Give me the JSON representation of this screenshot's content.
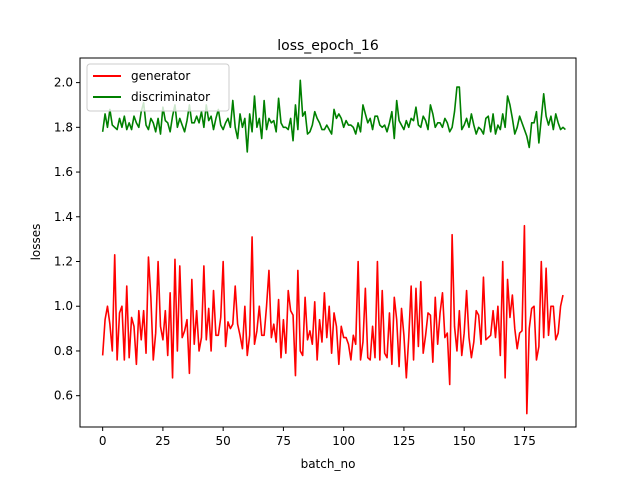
{
  "chart_data": {
    "type": "line",
    "title": "loss_epoch_16",
    "xlabel": "batch_no",
    "ylabel": "losses",
    "xlim": [
      -9.4,
      196.4
    ],
    "ylim": [
      0.46,
      2.11
    ],
    "xticks": [
      0,
      25,
      50,
      75,
      100,
      125,
      150,
      175
    ],
    "yticks": [
      0.6,
      0.8,
      1.0,
      1.2,
      1.4,
      1.6,
      1.8,
      2.0
    ],
    "xtick_labels": [
      "0",
      "25",
      "50",
      "75",
      "100",
      "125",
      "150",
      "175"
    ],
    "ytick_labels": [
      "0.6",
      "0.8",
      "1.0",
      "1.2",
      "1.4",
      "1.6",
      "1.8",
      "2.0"
    ],
    "legend_position": "top-left",
    "grid": false,
    "series": [
      {
        "name": "generator",
        "color": "#ff0000",
        "values": [
          0.78,
          0.94,
          1.0,
          0.92,
          0.8,
          1.23,
          0.76,
          0.97,
          1.0,
          0.76,
          1.09,
          0.77,
          0.95,
          0.91,
          0.74,
          0.98,
          0.85,
          0.98,
          0.79,
          1.22,
          1.04,
          0.76,
          0.88,
          1.2,
          0.91,
          0.85,
          0.98,
          0.78,
          1.06,
          0.68,
          1.21,
          0.8,
          1.18,
          0.86,
          0.89,
          0.94,
          0.7,
          1.12,
          0.83,
          0.98,
          0.8,
          0.86,
          1.18,
          0.85,
          0.99,
          0.8,
          1.07,
          0.87,
          0.87,
          0.95,
          1.2,
          0.82,
          0.93,
          0.9,
          0.92,
          1.09,
          0.92,
          0.87,
          0.81,
          1.0,
          0.78,
          0.87,
          1.31,
          0.83,
          0.89,
          1.0,
          0.87,
          0.87,
          1.0,
          1.16,
          0.86,
          0.92,
          0.84,
          1.03,
          0.77,
          0.94,
          0.79,
          1.07,
          0.98,
          0.96,
          0.69,
          1.16,
          0.8,
          0.78,
          1.04,
          0.85,
          0.89,
          0.83,
          1.02,
          0.76,
          0.94,
          0.84,
          1.06,
          0.86,
          1.0,
          0.79,
          0.97,
          0.91,
          0.74,
          0.91,
          0.86,
          0.86,
          0.83,
          0.76,
          0.87,
          0.83,
          1.2,
          0.76,
          0.84,
          1.08,
          0.77,
          0.76,
          0.91,
          0.77,
          1.2,
          0.76,
          1.07,
          0.79,
          0.77,
          0.97,
          0.74,
          1.04,
          0.94,
          0.73,
          0.99,
          0.87,
          0.68,
          0.86,
          1.09,
          0.76,
          1.08,
          0.82,
          1.11,
          0.79,
          0.87,
          0.97,
          0.96,
          0.75,
          1.04,
          0.83,
          0.97,
          1.06,
          0.86,
          0.88,
          0.65,
          1.32,
          0.91,
          0.8,
          0.98,
          0.78,
          0.88,
          1.07,
          0.86,
          0.77,
          0.84,
          0.98,
          0.96,
          0.83,
          1.13,
          0.85,
          0.86,
          0.87,
          0.98,
          0.86,
          1.0,
          0.78,
          1.2,
          0.68,
          1.12,
          0.95,
          1.05,
          0.9,
          0.81,
          0.88,
          0.89,
          1.36,
          0.52,
          0.9,
          0.99,
          1.0,
          0.76,
          0.82,
          1.2,
          0.86,
          1.17,
          0.87,
          1.0,
          1.0,
          0.85,
          0.88,
          1.0,
          1.05
        ]
      },
      {
        "name": "discriminator",
        "color": "#008000",
        "values": [
          1.78,
          1.86,
          1.8,
          1.88,
          1.81,
          1.8,
          1.79,
          1.84,
          1.8,
          1.85,
          1.79,
          1.82,
          1.79,
          1.85,
          1.82,
          1.8,
          1.87,
          1.91,
          1.81,
          1.79,
          1.84,
          1.82,
          1.78,
          1.84,
          1.77,
          1.89,
          1.83,
          1.82,
          1.78,
          1.85,
          1.9,
          1.8,
          1.84,
          1.81,
          1.78,
          1.83,
          1.9,
          1.82,
          1.82,
          1.85,
          1.82,
          1.87,
          1.8,
          1.9,
          1.83,
          1.85,
          1.79,
          1.84,
          1.88,
          1.81,
          1.79,
          1.82,
          1.84,
          1.8,
          1.92,
          1.8,
          1.75,
          1.86,
          1.8,
          1.84,
          1.69,
          1.86,
          1.78,
          1.94,
          1.8,
          1.84,
          1.75,
          1.92,
          1.79,
          1.84,
          1.82,
          1.83,
          1.78,
          1.93,
          1.82,
          1.8,
          1.8,
          1.79,
          1.84,
          1.74,
          1.9,
          1.79,
          2.01,
          1.85,
          1.87,
          1.77,
          1.78,
          1.81,
          1.87,
          1.84,
          1.82,
          1.79,
          1.79,
          1.81,
          1.79,
          1.77,
          1.88,
          1.84,
          1.86,
          1.84,
          1.8,
          1.83,
          1.81,
          1.81,
          1.8,
          1.77,
          1.82,
          1.78,
          1.9,
          1.86,
          1.82,
          1.84,
          1.79,
          1.85,
          1.85,
          1.81,
          1.8,
          1.81,
          1.78,
          1.82,
          1.87,
          1.75,
          1.92,
          1.83,
          1.81,
          1.79,
          1.83,
          1.8,
          1.84,
          1.83,
          1.89,
          1.81,
          1.8,
          1.85,
          1.83,
          1.79,
          1.9,
          1.86,
          1.8,
          1.82,
          1.82,
          1.8,
          1.84,
          1.82,
          1.78,
          1.8,
          1.87,
          1.98,
          1.98,
          1.79,
          1.81,
          1.84,
          1.8,
          1.86,
          1.81,
          1.77,
          1.8,
          1.79,
          1.77,
          1.84,
          1.85,
          1.78,
          1.86,
          1.77,
          1.81,
          1.79,
          1.86,
          1.8,
          1.94,
          1.9,
          1.84,
          1.77,
          1.8,
          1.85,
          1.82,
          1.79,
          1.76,
          1.71,
          1.82,
          1.82,
          1.87,
          1.73,
          1.84,
          1.95,
          1.85,
          1.81,
          1.85,
          1.79,
          1.86,
          1.82,
          1.79,
          1.8,
          1.79
        ]
      }
    ]
  }
}
